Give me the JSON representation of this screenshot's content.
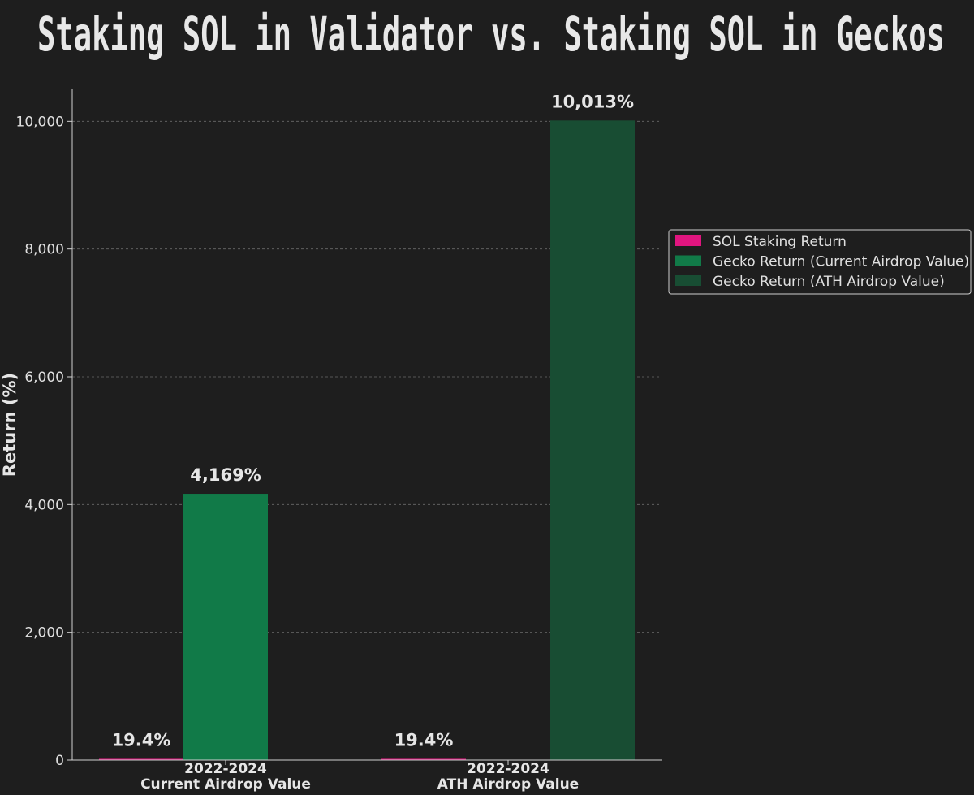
{
  "chart_data": {
    "type": "bar",
    "title": "Staking SOL in Validator vs. Staking SOL in Geckos",
    "xlabel": "",
    "ylabel": "Return (%)",
    "ylim": [
      0,
      10500
    ],
    "yticks": [
      0,
      2000,
      4000,
      6000,
      8000,
      10000
    ],
    "ytick_labels": [
      "0",
      "2,000",
      "4,000",
      "6,000",
      "8,000",
      "10,000"
    ],
    "grid": true,
    "legend_position": "right",
    "categories": [
      {
        "line1": "2022-2024",
        "line2": "Current Airdrop Value"
      },
      {
        "line1": "2022-2024",
        "line2": "ATH Airdrop Value"
      }
    ],
    "series": [
      {
        "name": "SOL Staking Return",
        "color": "#e0157f",
        "values": [
          19.4,
          19.4
        ]
      },
      {
        "name": "Gecko Return (Current Airdrop Value)",
        "color": "#117a48",
        "values": [
          4169,
          null
        ]
      },
      {
        "name": "Gecko Return (ATH Airdrop Value)",
        "color": "#184d33",
        "values": [
          null,
          10013
        ]
      }
    ],
    "data_labels": [
      {
        "series": 0,
        "category": 0,
        "text": "19.4%"
      },
      {
        "series": 1,
        "category": 0,
        "text": "4,169%"
      },
      {
        "series": 0,
        "category": 1,
        "text": "19.4%"
      },
      {
        "series": 2,
        "category": 1,
        "text": "10,013%"
      }
    ]
  }
}
